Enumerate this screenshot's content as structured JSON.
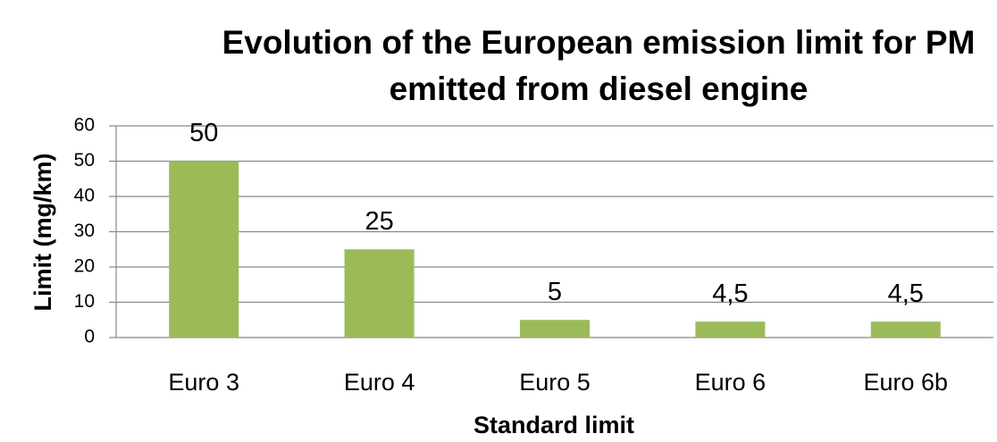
{
  "chart_data": {
    "type": "bar",
    "title": "Evolution of the European emission limit for PM emitted from diesel engine",
    "x_label": "Standard limit",
    "y_label": "Limit (mg/km)",
    "categories": [
      "Euro 3",
      "Euro 4",
      "Euro 5",
      "Euro 6",
      "Euro 6b"
    ],
    "values": [
      50,
      25,
      5,
      4.5,
      4.5
    ],
    "value_labels": [
      "50",
      "25",
      "5",
      "4,5",
      "4,5"
    ],
    "color": "#9bbb59",
    "ylim": [
      0,
      60
    ],
    "yticks": [
      0,
      10,
      20,
      30,
      40,
      50,
      60
    ],
    "grid": true
  }
}
